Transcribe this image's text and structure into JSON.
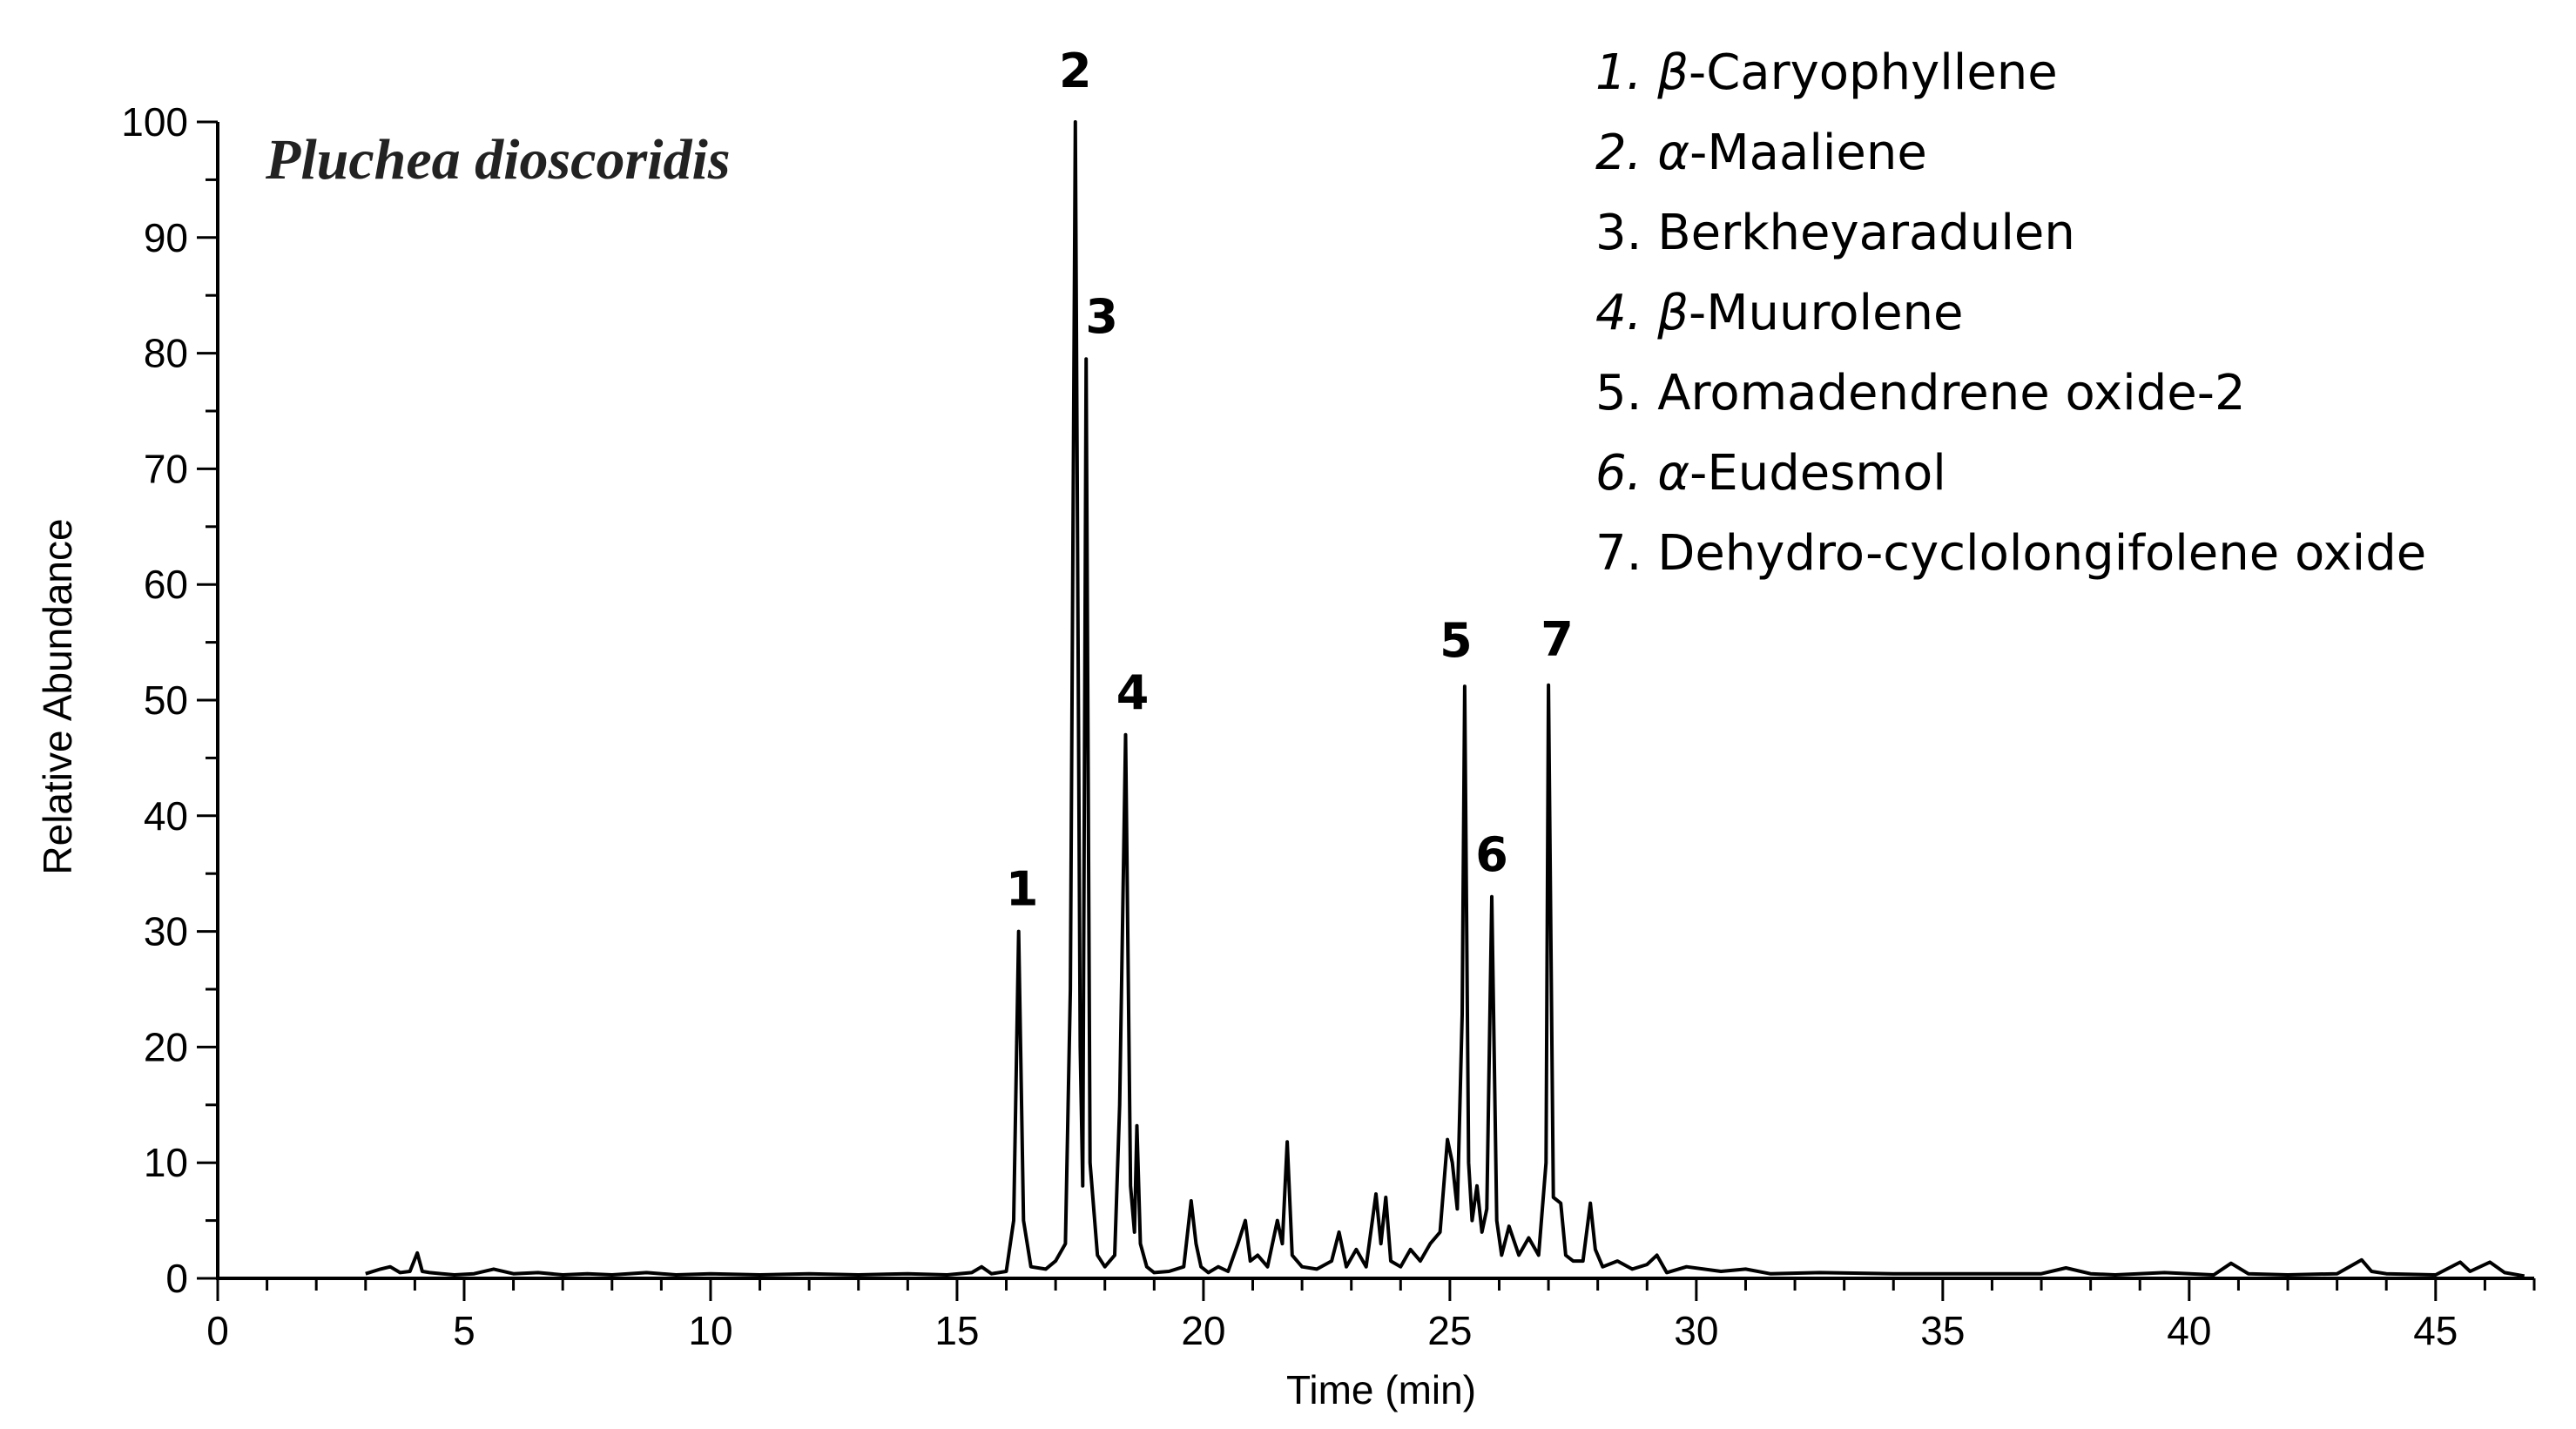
{
  "chart_data": {
    "type": "line",
    "title": "Pluchea dioscoridis",
    "xlabel": "Time (min)",
    "ylabel": "Relative Abundance",
    "xlim": [
      0,
      47
    ],
    "ylim": [
      0,
      100
    ],
    "x_major_ticks": [
      0,
      5,
      10,
      15,
      20,
      25,
      30,
      35,
      40,
      45
    ],
    "x_tick_labels": [
      "0",
      "5",
      "10",
      "15",
      "20",
      "25",
      "30",
      "35",
      "40",
      "45"
    ],
    "y_major_ticks": [
      0,
      10,
      20,
      30,
      40,
      50,
      60,
      70,
      80,
      90,
      100
    ],
    "y_tick_labels": [
      "0",
      "10",
      "20",
      "30",
      "40",
      "50",
      "60",
      "70",
      "80",
      "90",
      "100"
    ],
    "grid": false,
    "legend_position": "top-right",
    "series": [
      {
        "color": "#000000",
        "x": [
          3.0,
          3.3,
          3.5,
          3.7,
          3.9,
          4.05,
          4.15,
          4.3,
          4.8,
          5.2,
          5.6,
          6.0,
          6.5,
          7.0,
          7.5,
          8.0,
          8.7,
          9.3,
          10.0,
          11.0,
          12.0,
          13.0,
          14.0,
          14.8,
          15.3,
          15.5,
          15.7,
          16.0,
          16.15,
          16.25,
          16.35,
          16.5,
          16.8,
          17.0,
          17.2,
          17.3,
          17.4,
          17.5,
          17.55,
          17.62,
          17.7,
          17.85,
          18.0,
          18.2,
          18.3,
          18.42,
          18.52,
          18.6,
          18.65,
          18.72,
          18.85,
          19.0,
          19.3,
          19.6,
          19.75,
          19.85,
          19.95,
          20.1,
          20.3,
          20.5,
          20.7,
          20.85,
          20.95,
          21.1,
          21.3,
          21.5,
          21.6,
          21.7,
          21.8,
          22.0,
          22.3,
          22.6,
          22.75,
          22.9,
          23.1,
          23.3,
          23.5,
          23.6,
          23.7,
          23.8,
          24.0,
          24.2,
          24.4,
          24.6,
          24.8,
          24.95,
          25.05,
          25.15,
          25.25,
          25.3,
          25.38,
          25.45,
          25.55,
          25.65,
          25.75,
          25.85,
          25.95,
          26.05,
          26.2,
          26.4,
          26.6,
          26.8,
          26.95,
          27.0,
          27.1,
          27.25,
          27.35,
          27.5,
          27.7,
          27.85,
          27.95,
          28.1,
          28.4,
          28.7,
          29.0,
          29.2,
          29.4,
          29.8,
          30.5,
          31.0,
          31.5,
          32.5,
          34.0,
          35.5,
          37.0,
          37.5,
          38.0,
          38.5,
          39.5,
          40.5,
          40.85,
          41.2,
          42.0,
          43.0,
          43.5,
          43.7,
          44.0,
          45.0,
          45.5,
          45.7,
          46.1,
          46.4,
          46.8
        ],
        "y": [
          0.4,
          0.8,
          1.0,
          0.5,
          0.6,
          2.2,
          0.6,
          0.5,
          0.3,
          0.4,
          0.8,
          0.4,
          0.5,
          0.3,
          0.4,
          0.3,
          0.5,
          0.3,
          0.4,
          0.3,
          0.4,
          0.3,
          0.4,
          0.3,
          0.5,
          1.0,
          0.4,
          0.6,
          5.0,
          30.0,
          5.0,
          1.0,
          0.8,
          1.5,
          3.0,
          25.0,
          100.0,
          20.0,
          8.0,
          79.5,
          10.0,
          2.0,
          1.0,
          2.0,
          15.0,
          47.0,
          8.0,
          4.0,
          13.2,
          3.0,
          1.0,
          0.5,
          0.6,
          1.0,
          6.7,
          3.0,
          1.0,
          0.5,
          1.0,
          0.6,
          3.0,
          5.0,
          1.5,
          2.0,
          1.0,
          5.0,
          3.0,
          11.8,
          2.0,
          1.0,
          0.8,
          1.5,
          4.0,
          1.0,
          2.5,
          1.0,
          7.3,
          3.0,
          7.0,
          1.5,
          1.0,
          2.5,
          1.5,
          3.0,
          4.0,
          12.0,
          10.0,
          6.0,
          22.8,
          51.2,
          10.0,
          5.0,
          8.0,
          4.0,
          6.0,
          33.0,
          5.0,
          2.0,
          4.5,
          2.0,
          3.5,
          2.0,
          10.0,
          51.3,
          7.0,
          6.5,
          2.0,
          1.5,
          1.5,
          6.5,
          2.5,
          1.0,
          1.5,
          0.8,
          1.2,
          2.0,
          0.5,
          1.0,
          0.6,
          0.8,
          0.4,
          0.5,
          0.4,
          0.4,
          0.4,
          0.9,
          0.4,
          0.3,
          0.5,
          0.3,
          1.3,
          0.4,
          0.3,
          0.4,
          1.6,
          0.6,
          0.4,
          0.3,
          1.4,
          0.6,
          1.4,
          0.5,
          0.2
        ]
      }
    ],
    "annotations": [
      {
        "text": "1",
        "x": 16.25,
        "y": 30.0
      },
      {
        "text": "2",
        "x": 17.4,
        "y": 100.0
      },
      {
        "text": "3",
        "x": 17.62,
        "y": 79.5
      },
      {
        "text": "4",
        "x": 18.42,
        "y": 47.0
      },
      {
        "text": "5",
        "x": 25.3,
        "y": 51.2
      },
      {
        "text": "6",
        "x": 25.85,
        "y": 33.0
      },
      {
        "text": "7",
        "x": 27.0,
        "y": 51.3
      }
    ],
    "legend": [
      {
        "num": "1.",
        "italic_num": true,
        "greek": "β",
        "name": "-Caryophyllene"
      },
      {
        "num": "2.",
        "italic_num": true,
        "greek": "α",
        "name": "-Maaliene"
      },
      {
        "num": "3.",
        "italic_num": false,
        "greek": "",
        "name": "Berkheyaradulen"
      },
      {
        "num": "4.",
        "italic_num": true,
        "greek": "β",
        "name": "-Muurolene"
      },
      {
        "num": "5.",
        "italic_num": false,
        "greek": "",
        "name": "Aromadendrene oxide-2"
      },
      {
        "num": "6.",
        "italic_num": true,
        "greek": "α",
        "name": "-Eudesmol"
      },
      {
        "num": "7.",
        "italic_num": false,
        "greek": "",
        "name": "Dehydro-cyclolongifolene oxide"
      }
    ]
  }
}
